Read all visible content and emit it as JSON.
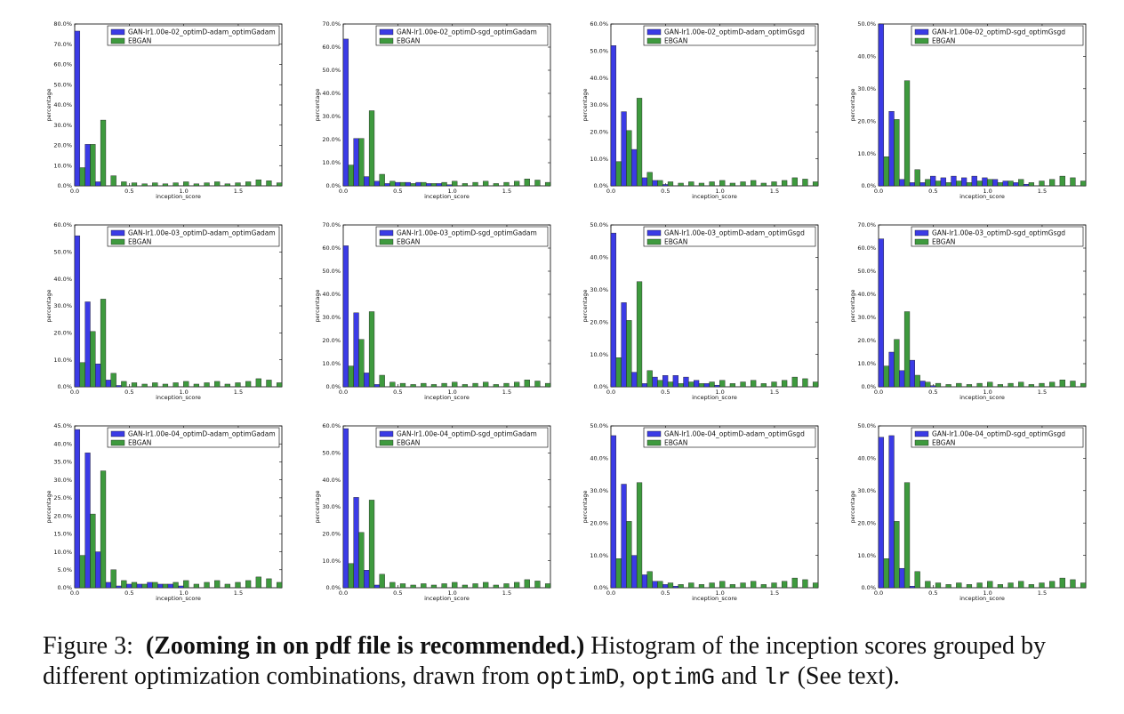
{
  "caption": {
    "label": "Figure 3:",
    "bold": "(Zooming in on pdf file is recommended.)",
    "text1": "Histogram of the inception scores grouped by different optimization combinations, drawn from",
    "code1": "optimD",
    "sep1": ",",
    "code2": "optimG",
    "and": "and",
    "code3": "lr",
    "tail": "(See text)."
  },
  "colors": {
    "gan": "#3b3be6",
    "ebgan": "#3e9a3e",
    "edge": "#1a1a1a"
  },
  "chart_data": [
    {
      "type": "bar",
      "xlabel": "inception_score",
      "ylabel": "percentage",
      "ylim": [
        0,
        80
      ],
      "yticks": [
        "0.0%",
        "10.0%",
        "20.0%",
        "30.0%",
        "40.0%",
        "50.0%",
        "60.0%",
        "70.0%",
        "80.0%"
      ],
      "xticks": [
        "0.0",
        "0.5",
        "1.0",
        "1.5"
      ],
      "series": [
        {
          "name": "GAN-lr1.00e-02_optimD-adam_optimGadam",
          "values": [
            76.5,
            20.5,
            2.0,
            0,
            0,
            0,
            0,
            0,
            0,
            0,
            0,
            0,
            0,
            0,
            0,
            0,
            0,
            0,
            0,
            0
          ]
        },
        {
          "name": "EBGAN",
          "values": [
            9.0,
            20.5,
            32.5,
            5.0,
            2.0,
            1.5,
            1.0,
            1.5,
            1.0,
            1.5,
            2.0,
            1.0,
            1.5,
            2.0,
            1.0,
            1.5,
            2.0,
            3.0,
            2.5,
            1.5
          ]
        }
      ]
    },
    {
      "type": "bar",
      "xlabel": "inception_score",
      "ylabel": "percentage",
      "ylim": [
        0,
        70
      ],
      "yticks": [
        "0.0%",
        "10.0%",
        "20.0%",
        "30.0%",
        "40.0%",
        "50.0%",
        "60.0%",
        "70.0%"
      ],
      "xticks": [
        "0.0",
        "0.5",
        "1.0",
        "1.5"
      ],
      "series": [
        {
          "name": "GAN-lr1.00e-02_optimD-sgd_optimGadam",
          "values": [
            63.5,
            20.5,
            4.0,
            2.0,
            1.0,
            1.5,
            1.5,
            1.5,
            1.0,
            1.0,
            0.5,
            0,
            0,
            0,
            0,
            0,
            0,
            0,
            0,
            0
          ]
        },
        {
          "name": "EBGAN",
          "values": [
            9.0,
            20.5,
            32.5,
            5.0,
            2.0,
            1.5,
            1.0,
            1.5,
            1.0,
            1.5,
            2.0,
            1.0,
            1.5,
            2.0,
            1.0,
            1.5,
            2.0,
            3.0,
            2.5,
            1.5
          ]
        }
      ]
    },
    {
      "type": "bar",
      "xlabel": "inception_score",
      "ylabel": "percentage",
      "ylim": [
        0,
        60
      ],
      "yticks": [
        "0.0%",
        "10.0%",
        "20.0%",
        "30.0%",
        "40.0%",
        "50.0%",
        "60.0%"
      ],
      "xticks": [
        "0.0",
        "0.5",
        "1.0",
        "1.5"
      ],
      "series": [
        {
          "name": "GAN-lr1.00e-02_optimD-adam_optimGsgd",
          "values": [
            52.0,
            27.5,
            13.5,
            3.0,
            2.0,
            0.5,
            0,
            0,
            0,
            0,
            0,
            0,
            0,
            0,
            0,
            0,
            0,
            0,
            0,
            0
          ]
        },
        {
          "name": "EBGAN",
          "values": [
            9.0,
            20.5,
            32.5,
            5.0,
            2.0,
            1.5,
            1.0,
            1.5,
            1.0,
            1.5,
            2.0,
            1.0,
            1.5,
            2.0,
            1.0,
            1.5,
            2.0,
            3.0,
            2.5,
            1.5
          ]
        }
      ]
    },
    {
      "type": "bar",
      "xlabel": "inception_score",
      "ylabel": "percentage",
      "ylim": [
        0,
        50
      ],
      "yticks": [
        "0.0%",
        "10.0%",
        "20.0%",
        "30.0%",
        "40.0%",
        "50.0%"
      ],
      "xticks": [
        "0.0",
        "0.5",
        "1.0",
        "1.5"
      ],
      "series": [
        {
          "name": "GAN-lr1.00e-02_optimD-sgd_optimGsgd",
          "values": [
            50.0,
            23.0,
            2.0,
            1.0,
            1.0,
            3.0,
            2.5,
            3.0,
            2.5,
            3.0,
            2.5,
            2.0,
            1.5,
            1.0,
            0.5,
            0,
            0,
            0,
            0,
            0
          ]
        },
        {
          "name": "EBGAN",
          "values": [
            9.0,
            20.5,
            32.5,
            5.0,
            2.0,
            1.5,
            1.0,
            1.5,
            1.0,
            1.5,
            2.0,
            1.0,
            1.5,
            2.0,
            1.0,
            1.5,
            2.0,
            3.0,
            2.5,
            1.5
          ]
        }
      ]
    },
    {
      "type": "bar",
      "xlabel": "inception_score",
      "ylabel": "percentage",
      "ylim": [
        0,
        60
      ],
      "yticks": [
        "0.0%",
        "10.0%",
        "20.0%",
        "30.0%",
        "40.0%",
        "50.0%",
        "60.0%"
      ],
      "xticks": [
        "0.0",
        "0.5",
        "1.0",
        "1.5"
      ],
      "series": [
        {
          "name": "GAN-lr1.00e-03_optimD-adam_optimGadam",
          "values": [
            56.0,
            31.5,
            8.5,
            2.5,
            0.5,
            0,
            0,
            0,
            0,
            0,
            0,
            0,
            0,
            0,
            0,
            0,
            0,
            0,
            0,
            0
          ]
        },
        {
          "name": "EBGAN",
          "values": [
            9.0,
            20.5,
            32.5,
            5.0,
            2.0,
            1.5,
            1.0,
            1.5,
            1.0,
            1.5,
            2.0,
            1.0,
            1.5,
            2.0,
            1.0,
            1.5,
            2.0,
            3.0,
            2.5,
            1.5
          ]
        }
      ]
    },
    {
      "type": "bar",
      "xlabel": "inception_score",
      "ylabel": "percentage",
      "ylim": [
        0,
        70
      ],
      "yticks": [
        "0.0%",
        "10.0%",
        "20.0%",
        "30.0%",
        "40.0%",
        "50.0%",
        "60.0%",
        "70.0%"
      ],
      "xticks": [
        "0.0",
        "0.5",
        "1.0",
        "1.5"
      ],
      "series": [
        {
          "name": "GAN-lr1.00e-03_optimD-sgd_optimGadam",
          "values": [
            61.0,
            32.0,
            6.0,
            1.0,
            0,
            0,
            0,
            0,
            0,
            0,
            0,
            0,
            0,
            0,
            0,
            0,
            0,
            0,
            0,
            0
          ]
        },
        {
          "name": "EBGAN",
          "values": [
            9.0,
            20.5,
            32.5,
            5.0,
            2.0,
            1.5,
            1.0,
            1.5,
            1.0,
            1.5,
            2.0,
            1.0,
            1.5,
            2.0,
            1.0,
            1.5,
            2.0,
            3.0,
            2.5,
            1.5
          ]
        }
      ]
    },
    {
      "type": "bar",
      "xlabel": "inception_score",
      "ylabel": "percentage",
      "ylim": [
        0,
        50
      ],
      "yticks": [
        "0.0%",
        "10.0%",
        "20.0%",
        "30.0%",
        "40.0%",
        "50.0%"
      ],
      "xticks": [
        "0.0",
        "0.5",
        "1.0",
        "1.5"
      ],
      "series": [
        {
          "name": "GAN-lr1.00e-03_optimD-adam_optimGsgd",
          "values": [
            47.5,
            26.0,
            4.5,
            1.0,
            3.0,
            3.5,
            3.5,
            3.0,
            2.0,
            1.0,
            0.5,
            0,
            0,
            0,
            0,
            0,
            0,
            0,
            0,
            0
          ]
        },
        {
          "name": "EBGAN",
          "values": [
            9.0,
            20.5,
            32.5,
            5.0,
            2.0,
            1.5,
            1.0,
            1.5,
            1.0,
            1.5,
            2.0,
            1.0,
            1.5,
            2.0,
            1.0,
            1.5,
            2.0,
            3.0,
            2.5,
            1.5
          ]
        }
      ]
    },
    {
      "type": "bar",
      "xlabel": "inception_score",
      "ylabel": "percentage",
      "ylim": [
        0,
        70
      ],
      "yticks": [
        "0.0%",
        "10.0%",
        "20.0%",
        "30.0%",
        "40.0%",
        "50.0%",
        "60.0%",
        "70.0%"
      ],
      "xticks": [
        "0.0",
        "0.5",
        "1.0",
        "1.5"
      ],
      "series": [
        {
          "name": "GAN-lr1.00e-03_optimD-sgd_optimGsgd",
          "values": [
            64.0,
            15.0,
            7.0,
            11.5,
            2.5,
            0.5,
            0,
            0,
            0,
            0,
            0,
            0,
            0,
            0,
            0,
            0,
            0,
            0,
            0,
            0
          ]
        },
        {
          "name": "EBGAN",
          "values": [
            9.0,
            20.5,
            32.5,
            5.0,
            2.0,
            1.5,
            1.0,
            1.5,
            1.0,
            1.5,
            2.0,
            1.0,
            1.5,
            2.0,
            1.0,
            1.5,
            2.0,
            3.0,
            2.5,
            1.5
          ]
        }
      ]
    },
    {
      "type": "bar",
      "xlabel": "inception_score",
      "ylabel": "percentage",
      "ylim": [
        0,
        45
      ],
      "yticks": [
        "0.0%",
        "5.0%",
        "10.0%",
        "15.0%",
        "20.0%",
        "25.0%",
        "30.0%",
        "35.0%",
        "40.0%",
        "45.0%"
      ],
      "xticks": [
        "0.0",
        "0.5",
        "1.0",
        "1.5"
      ],
      "series": [
        {
          "name": "GAN-lr1.00e-04_optimD-adam_optimGadam",
          "values": [
            44.0,
            37.5,
            10.0,
            1.5,
            0.5,
            1.0,
            1.0,
            1.5,
            1.0,
            1.0,
            0.5,
            0,
            0,
            0,
            0,
            0,
            0,
            0,
            0,
            0
          ]
        },
        {
          "name": "EBGAN",
          "values": [
            9.0,
            20.5,
            32.5,
            5.0,
            2.0,
            1.5,
            1.0,
            1.5,
            1.0,
            1.5,
            2.0,
            1.0,
            1.5,
            2.0,
            1.0,
            1.5,
            2.0,
            3.0,
            2.5,
            1.5
          ]
        }
      ]
    },
    {
      "type": "bar",
      "xlabel": "inception_score",
      "ylabel": "percentage",
      "ylim": [
        0,
        60
      ],
      "yticks": [
        "0.0%",
        "10.0%",
        "20.0%",
        "30.0%",
        "40.0%",
        "50.0%",
        "60.0%"
      ],
      "xticks": [
        "0.0",
        "0.5",
        "1.0",
        "1.5"
      ],
      "series": [
        {
          "name": "GAN-lr1.00e-04_optimD-sgd_optimGadam",
          "values": [
            59.0,
            33.5,
            6.5,
            1.0,
            0,
            0,
            0,
            0,
            0,
            0,
            0,
            0,
            0,
            0,
            0,
            0,
            0,
            0,
            0,
            0
          ]
        },
        {
          "name": "EBGAN",
          "values": [
            9.0,
            20.5,
            32.5,
            5.0,
            2.0,
            1.5,
            1.0,
            1.5,
            1.0,
            1.5,
            2.0,
            1.0,
            1.5,
            2.0,
            1.0,
            1.5,
            2.0,
            3.0,
            2.5,
            1.5
          ]
        }
      ]
    },
    {
      "type": "bar",
      "xlabel": "inception_score",
      "ylabel": "percentage",
      "ylim": [
        0,
        50
      ],
      "yticks": [
        "0.0%",
        "10.0%",
        "20.0%",
        "30.0%",
        "40.0%",
        "50.0%"
      ],
      "xticks": [
        "0.0",
        "0.5",
        "1.0",
        "1.5"
      ],
      "series": [
        {
          "name": "GAN-lr1.00e-04_optimD-adam_optimGsgd",
          "values": [
            47.0,
            32.0,
            10.0,
            4.0,
            2.0,
            1.0,
            0.5,
            0,
            0,
            0,
            0,
            0,
            0,
            0,
            0,
            0,
            0,
            0,
            0,
            0
          ]
        },
        {
          "name": "EBGAN",
          "values": [
            9.0,
            20.5,
            32.5,
            5.0,
            2.0,
            1.5,
            1.0,
            1.5,
            1.0,
            1.5,
            2.0,
            1.0,
            1.5,
            2.0,
            1.0,
            1.5,
            2.0,
            3.0,
            2.5,
            1.5
          ]
        }
      ]
    },
    {
      "type": "bar",
      "xlabel": "inception_score",
      "ylabel": "percentage",
      "ylim": [
        0,
        50
      ],
      "yticks": [
        "0.0%",
        "10.0%",
        "20.0%",
        "30.0%",
        "40.0%",
        "50.0%"
      ],
      "xticks": [
        "0.0",
        "0.5",
        "1.0",
        "1.5"
      ],
      "series": [
        {
          "name": "GAN-lr1.00e-04_optimD-sgd_optimGsgd",
          "values": [
            46.5,
            47.0,
            6.0,
            0.5,
            0,
            0,
            0,
            0,
            0,
            0,
            0,
            0,
            0,
            0,
            0,
            0,
            0,
            0,
            0,
            0
          ]
        },
        {
          "name": "EBGAN",
          "values": [
            9.0,
            20.5,
            32.5,
            5.0,
            2.0,
            1.5,
            1.0,
            1.5,
            1.0,
            1.5,
            2.0,
            1.0,
            1.5,
            2.0,
            1.0,
            1.5,
            2.0,
            3.0,
            2.5,
            1.5
          ]
        }
      ]
    }
  ]
}
